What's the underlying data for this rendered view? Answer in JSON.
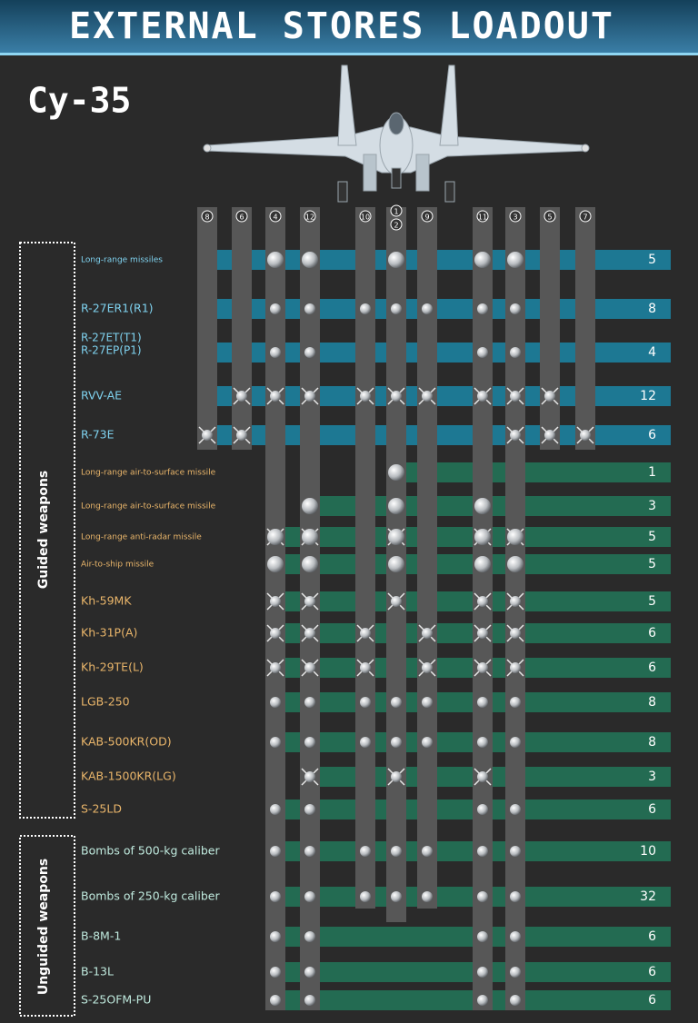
{
  "header": {
    "title": "EXTERNAL STORES LOADOUT"
  },
  "aircraft": "Су-35",
  "stations": [
    "8",
    "6",
    "4",
    "12",
    "10",
    "1",
    "2",
    "9",
    "11",
    "3",
    "5",
    "7"
  ],
  "groups": [
    {
      "label": "Guided weapons",
      "rows": [
        {
          "name": "Long-range missiles",
          "count": "5"
        },
        {
          "name": "R-27ER1(R1)",
          "count": "8"
        },
        {
          "name": [
            "R-27ET(T1)",
            "R-27EP(P1)"
          ],
          "count": "4"
        },
        {
          "name": "RVV-AE",
          "count": "12"
        },
        {
          "name": "R-73E",
          "count": "6"
        },
        {
          "name": "Long-range air-to-surface missile",
          "count": "1"
        },
        {
          "name": "Long-range air-to-surface missile",
          "count": "3"
        },
        {
          "name": "Long-range anti-radar missile",
          "count": "5"
        },
        {
          "name": "Air-to-ship missile",
          "count": "5"
        },
        {
          "name": "Kh-59MK",
          "count": "5"
        },
        {
          "name": "Kh-31P(A)",
          "count": "6"
        },
        {
          "name": "Kh-29TE(L)",
          "count": "6"
        },
        {
          "name": "LGB-250",
          "count": "8"
        },
        {
          "name": "KAB-500KR(OD)",
          "count": "8"
        },
        {
          "name": "KAB-1500KR(LG)",
          "count": "3"
        },
        {
          "name": "S-25LD",
          "count": "6"
        }
      ]
    },
    {
      "label": "Unguided weapons",
      "rows": [
        {
          "name": "Bombs of 500-kg caliber",
          "count": "10"
        },
        {
          "name": "Bombs of 250-kg caliber",
          "count": "32"
        },
        {
          "name": "B-8M-1",
          "count": "6"
        },
        {
          "name": "B-13L",
          "count": "6"
        },
        {
          "name": "S-25OFM-PU",
          "count": "6"
        }
      ]
    }
  ]
}
